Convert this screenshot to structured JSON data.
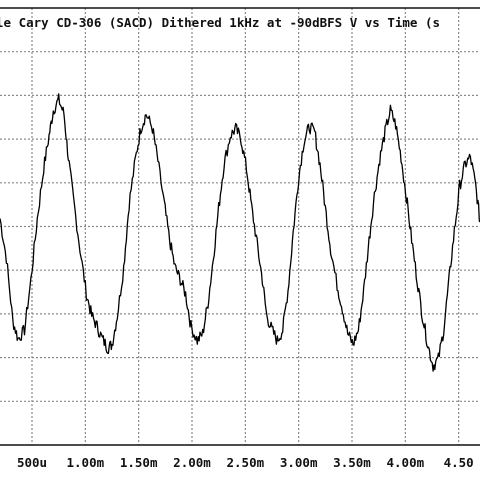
{
  "chart_data": {
    "type": "line",
    "title": "le  Cary CD-306 (SACD)  Dithered 1kHz at -90dBFS  V vs Time (s",
    "x_tick_labels": [
      "500u",
      "1.00m",
      "1.50m",
      "2.00m",
      "2.50m",
      "3.00m",
      "3.50m",
      "4.00m",
      "4.50"
    ],
    "x_ticks": [
      0.0005,
      0.001,
      0.0015,
      0.002,
      0.0025,
      0.003,
      0.0035,
      0.004,
      0.0045
    ],
    "xlim": [
      0.0002,
      0.0047
    ],
    "ylim": [
      -1.0,
      1.0
    ],
    "grid": true,
    "x": [
      0.0002,
      0.00026,
      0.00032,
      0.00037,
      0.00043,
      0.00049,
      0.00055,
      0.00061,
      0.00066,
      0.0007,
      0.00075,
      0.0008,
      0.00084,
      0.00089,
      0.00095,
      0.00101,
      0.00106,
      0.00111,
      0.00116,
      0.00121,
      0.00125,
      0.0013,
      0.00136,
      0.00141,
      0.00147,
      0.00152,
      0.00157,
      0.00163,
      0.00168,
      0.00174,
      0.00179,
      0.00184,
      0.00189,
      0.00194,
      0.00199,
      0.00205,
      0.0021,
      0.00215,
      0.0022,
      0.00225,
      0.0023,
      0.00236,
      0.00241,
      0.00246,
      0.00251,
      0.00256,
      0.00261,
      0.00266,
      0.0027,
      0.00275,
      0.0028,
      0.00285,
      0.0029,
      0.00295,
      0.003,
      0.00305,
      0.0031,
      0.00315,
      0.0032,
      0.00325,
      0.0033,
      0.00336,
      0.00341,
      0.00346,
      0.00351,
      0.00356,
      0.00361,
      0.00366,
      0.00371,
      0.00376,
      0.00381,
      0.00386,
      0.00391,
      0.00396,
      0.00401,
      0.00406,
      0.00411,
      0.00416,
      0.00421,
      0.00426,
      0.00431,
      0.00436,
      0.00441,
      0.00446,
      0.00451,
      0.00456,
      0.00461,
      0.00466,
      0.0047
    ],
    "y": [
      0.12,
      -0.1,
      -0.45,
      -0.55,
      -0.5,
      -0.22,
      0.12,
      0.4,
      0.58,
      0.72,
      0.78,
      0.7,
      0.46,
      0.22,
      -0.05,
      -0.3,
      -0.42,
      -0.48,
      -0.55,
      -0.6,
      -0.58,
      -0.42,
      -0.15,
      0.2,
      0.45,
      0.62,
      0.7,
      0.62,
      0.44,
      0.2,
      0.0,
      -0.15,
      -0.22,
      -0.3,
      -0.48,
      -0.56,
      -0.52,
      -0.35,
      -0.1,
      0.18,
      0.42,
      0.58,
      0.62,
      0.56,
      0.4,
      0.18,
      -0.02,
      -0.22,
      -0.42,
      -0.5,
      -0.56,
      -0.5,
      -0.28,
      0.05,
      0.35,
      0.55,
      0.63,
      0.6,
      0.42,
      0.18,
      -0.05,
      -0.25,
      -0.38,
      -0.52,
      -0.58,
      -0.5,
      -0.28,
      0.0,
      0.25,
      0.45,
      0.6,
      0.72,
      0.64,
      0.46,
      0.24,
      0.0,
      -0.22,
      -0.42,
      -0.58,
      -0.7,
      -0.66,
      -0.5,
      -0.22,
      0.05,
      0.3,
      0.42,
      0.46,
      0.3,
      0.1
    ],
    "color": "#000000",
    "grid_color": "#8a8a8a"
  }
}
